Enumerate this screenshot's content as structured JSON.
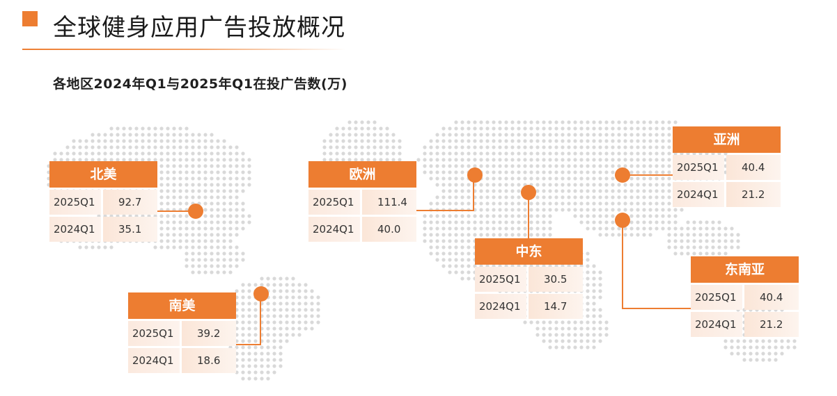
{
  "header": {
    "title": "全球健身应用广告投放概况",
    "subtitle": "各地区2024年Q1与2025年Q1在投广告数(万)"
  },
  "colors": {
    "accent": "#ed7d31",
    "map_dot": "#d9d9d9",
    "cell_fill": "#fbe9de"
  },
  "regions": [
    {
      "name": "北美",
      "rows": [
        {
          "period": "2025Q1",
          "value": "92.7"
        },
        {
          "period": "2024Q1",
          "value": "35.1"
        }
      ]
    },
    {
      "name": "欧洲",
      "rows": [
        {
          "period": "2025Q1",
          "value": "111.4"
        },
        {
          "period": "2024Q1",
          "value": "40.0"
        }
      ]
    },
    {
      "name": "中东",
      "rows": [
        {
          "period": "2025Q1",
          "value": "30.5"
        },
        {
          "period": "2024Q1",
          "value": "14.7"
        }
      ]
    },
    {
      "name": "亚洲",
      "rows": [
        {
          "period": "2025Q1",
          "value": "40.4"
        },
        {
          "period": "2024Q1",
          "value": "21.2"
        }
      ]
    },
    {
      "name": "东南亚",
      "rows": [
        {
          "period": "2025Q1",
          "value": "40.4"
        },
        {
          "period": "2024Q1",
          "value": "21.2"
        }
      ]
    },
    {
      "name": "南美",
      "rows": [
        {
          "period": "2025Q1",
          "value": "39.2"
        },
        {
          "period": "2024Q1",
          "value": "18.6"
        }
      ]
    }
  ]
}
